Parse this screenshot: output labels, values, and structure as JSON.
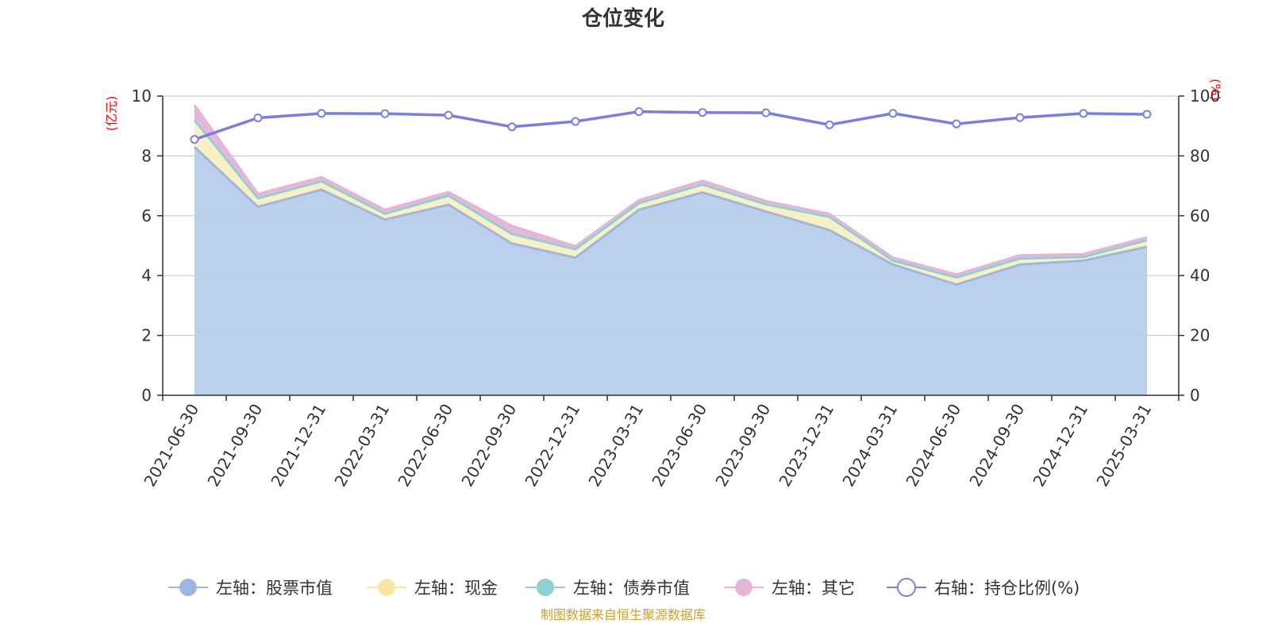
{
  "title": "仓位变化",
  "source": "制图数据来自恒生聚源数据库",
  "colors": {
    "stock": "#9db7e0",
    "stock_fill": "#b8cceb",
    "cash": "#f7e7a3",
    "cash_fill": "#fbefc0",
    "bond": "#8fd1d1",
    "other": "#e6b3d9",
    "ratio": "#7a7de8"
  },
  "chart_data": {
    "type": "area",
    "title": "仓位变化",
    "categories": [
      "2021-06-30",
      "2021-09-30",
      "2021-12-31",
      "2022-03-31",
      "2022-06-30",
      "2022-09-30",
      "2022-12-31",
      "2023-03-31",
      "2023-06-30",
      "2023-09-30",
      "2023-12-31",
      "2024-03-31",
      "2024-06-30",
      "2024-09-30",
      "2024-12-31",
      "2025-03-31"
    ],
    "y_left": {
      "label": "(亿元)",
      "min": 0,
      "max": 10,
      "ticks": [
        "0",
        "2",
        "4",
        "6",
        "8",
        "10"
      ]
    },
    "y_right": {
      "label": "(%)",
      "min": 0,
      "max": 100,
      "ticks": [
        "0",
        "20",
        "40",
        "60",
        "80",
        "100"
      ]
    },
    "grid": true,
    "legend_position": "bottom",
    "series": [
      {
        "name": "左轴：股票市值",
        "axis": "left",
        "stack": true,
        "values": [
          8.3,
          6.3,
          6.87,
          5.87,
          6.37,
          5.07,
          4.6,
          6.2,
          6.78,
          6.14,
          5.52,
          4.37,
          3.7,
          4.37,
          4.5,
          4.96
        ]
      },
      {
        "name": "左轴：现金",
        "axis": "left",
        "stack": true,
        "values": [
          0.9,
          0.28,
          0.28,
          0.2,
          0.3,
          0.32,
          0.28,
          0.22,
          0.26,
          0.24,
          0.44,
          0.13,
          0.24,
          0.2,
          0.12,
          0.22
        ]
      },
      {
        "name": "左轴：债券市值",
        "axis": "left",
        "stack": true,
        "values": [
          0,
          0,
          0,
          0,
          0,
          0,
          0,
          0,
          0,
          0,
          0,
          0,
          0,
          0,
          0,
          0
        ]
      },
      {
        "name": "左轴：其它",
        "axis": "left",
        "stack": true,
        "values": [
          0.5,
          0.15,
          0.14,
          0.13,
          0.12,
          0.27,
          0.1,
          0.1,
          0.13,
          0.11,
          0.1,
          0.1,
          0.1,
          0.11,
          0.1,
          0.1
        ]
      },
      {
        "name": "右轴：持仓比例(%)",
        "axis": "right",
        "stack": false,
        "values": [
          85.5,
          92.7,
          94.2,
          94.1,
          93.6,
          89.7,
          91.5,
          94.8,
          94.5,
          94.4,
          90.4,
          94.2,
          90.7,
          92.8,
          94.2,
          93.9
        ]
      }
    ]
  }
}
